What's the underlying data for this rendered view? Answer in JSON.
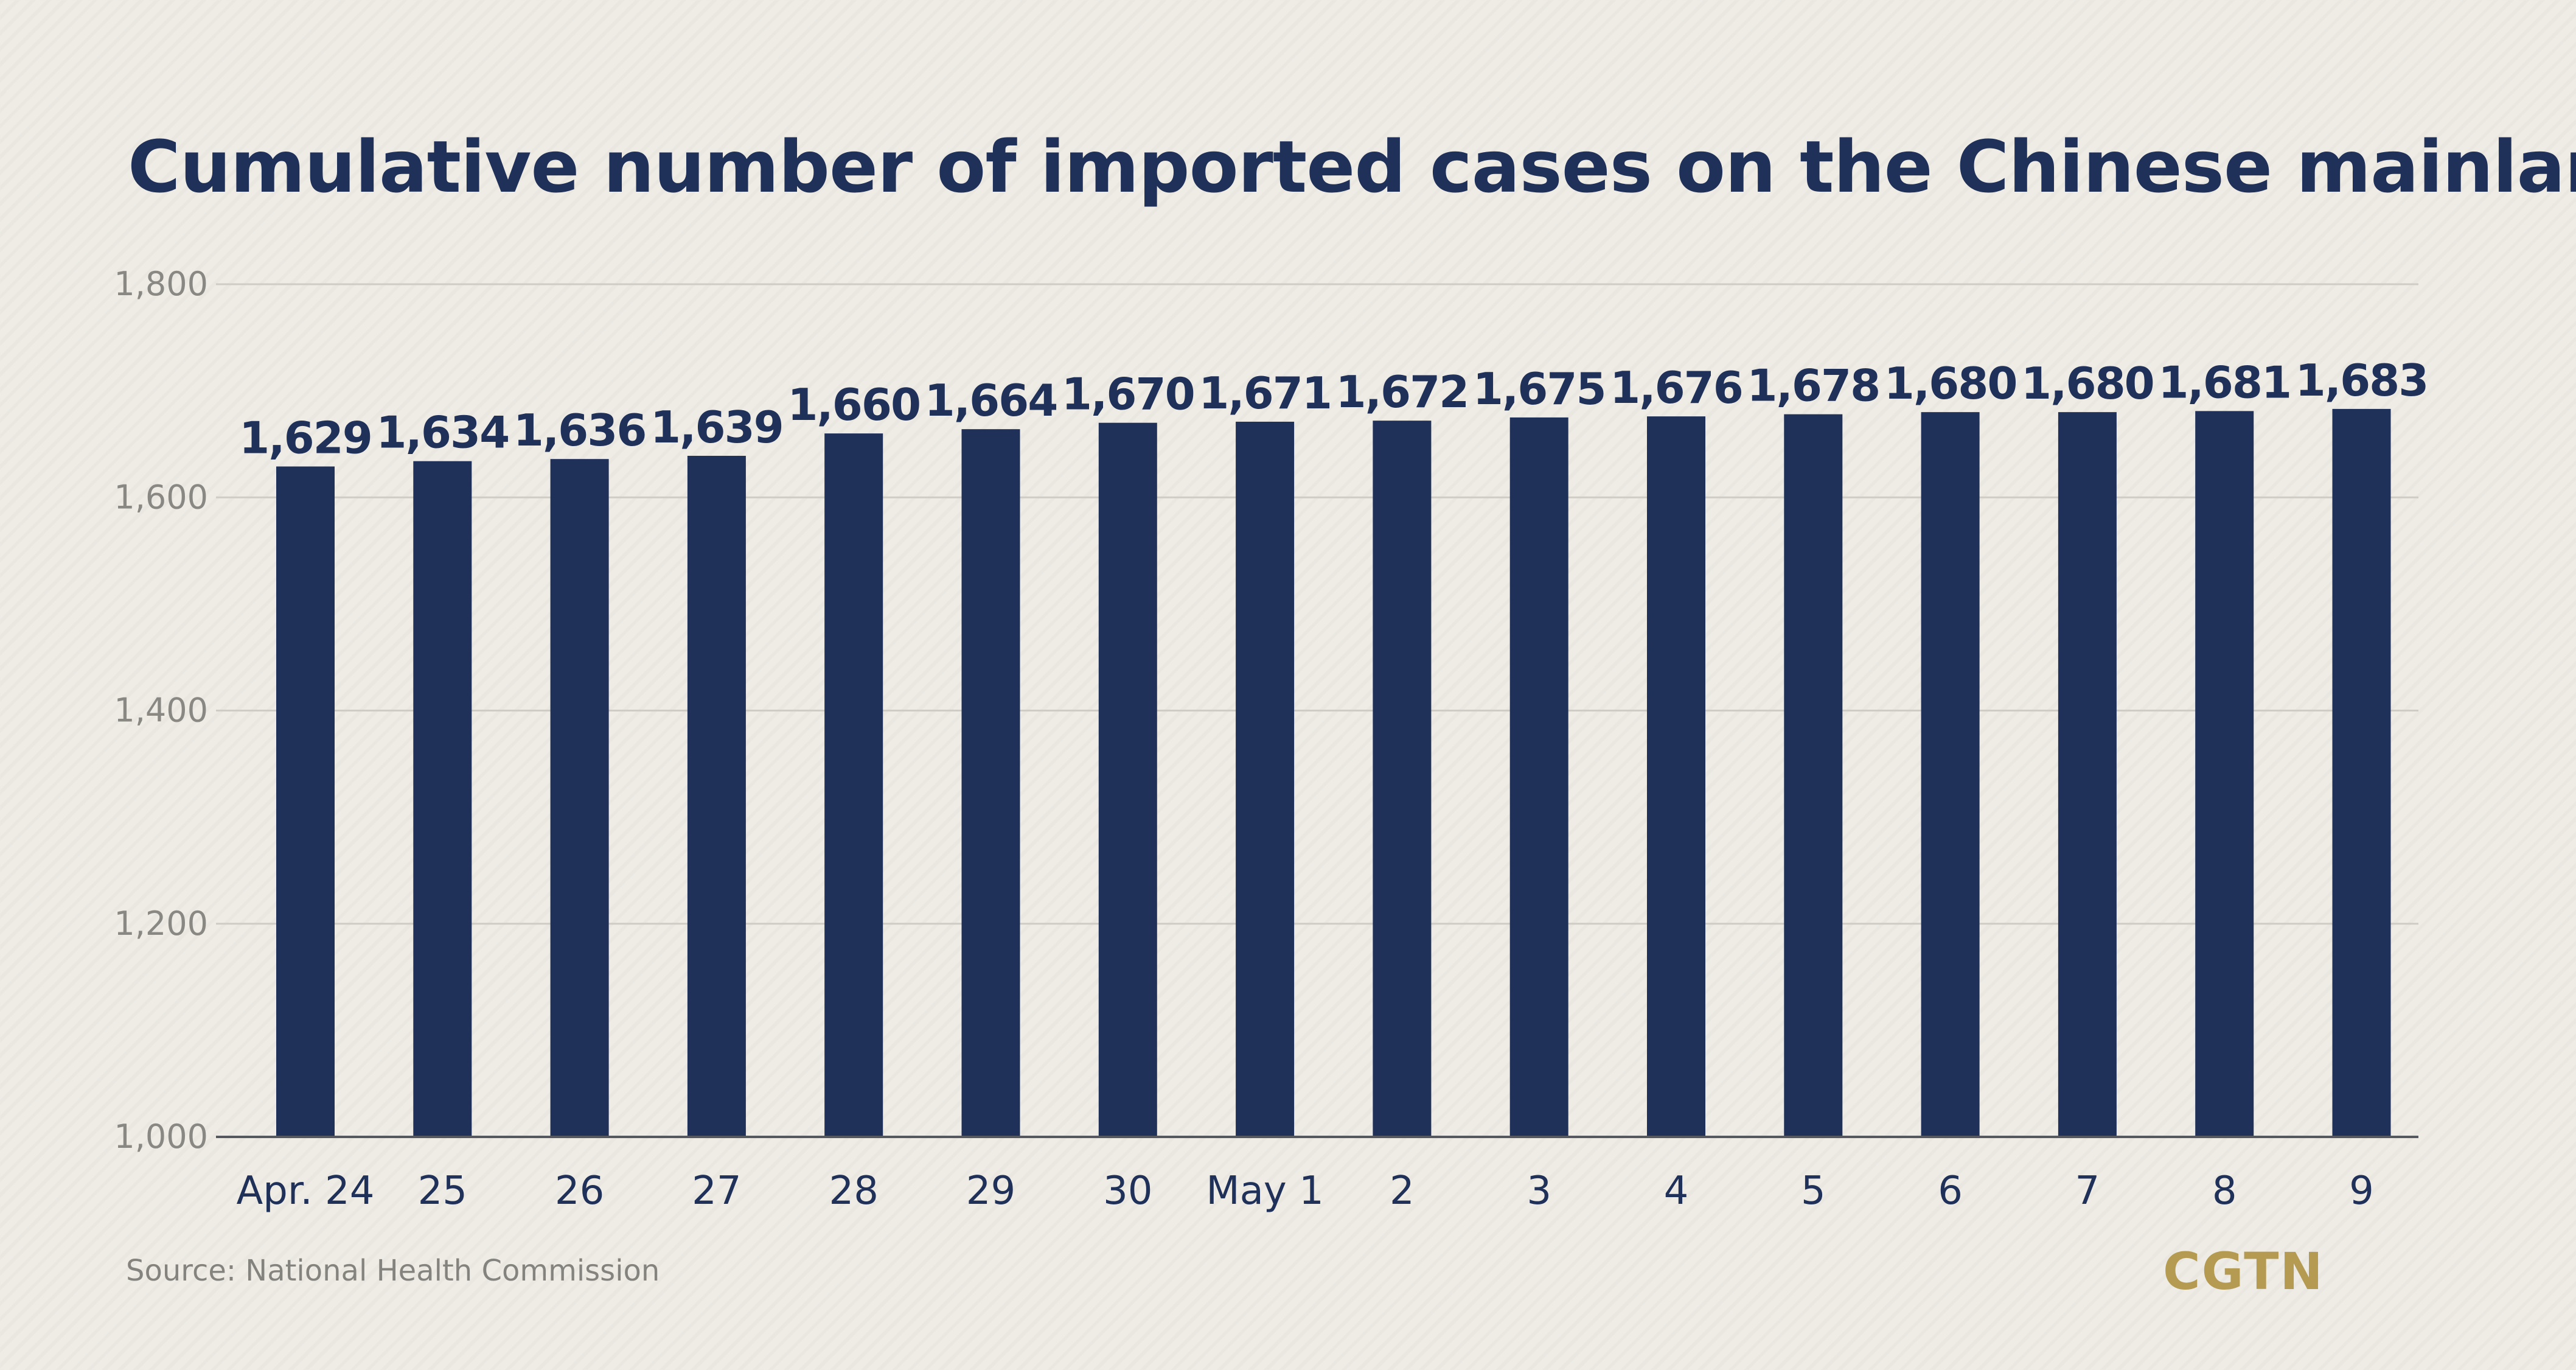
{
  "header": {
    "title": "Cumulative number of imported cases on the Chinese mainland"
  },
  "footer": {
    "source": "Source: National Health Commission",
    "logo_text": "CGTN"
  },
  "colors": {
    "bar": "#1f3059",
    "title": "#1f3059",
    "value_label": "#1f3059",
    "category_label": "#1f3059",
    "tick_label": "#8a8883",
    "grid": "#cfccc5",
    "baseline": "#55585f",
    "source": "#85837e",
    "logo": "#b59b52",
    "background": "#efece6"
  },
  "chart_data": {
    "type": "bar",
    "title": "Cumulative number of imported cases on the Chinese mainland",
    "xlabel": "",
    "ylabel": "",
    "categories": [
      "Apr. 24",
      "25",
      "26",
      "27",
      "28",
      "29",
      "30",
      "May 1",
      "2",
      "3",
      "4",
      "5",
      "6",
      "7",
      "8",
      "9"
    ],
    "values": [
      1629,
      1634,
      1636,
      1639,
      1660,
      1664,
      1670,
      1671,
      1672,
      1675,
      1676,
      1678,
      1680,
      1680,
      1681,
      1683
    ],
    "value_labels": [
      "1,629",
      "1,634",
      "1,636",
      "1,639",
      "1,660",
      "1,664",
      "1,670",
      "1,671",
      "1,672",
      "1,675",
      "1,676",
      "1,678",
      "1,680",
      "1,680",
      "1,681",
      "1,683"
    ],
    "ylim": [
      1000,
      1800
    ],
    "yticks": [
      1000,
      1200,
      1400,
      1600,
      1800
    ],
    "ytick_labels": [
      "1,000",
      "1,200",
      "1,400",
      "1,600",
      "1,800"
    ],
    "grid": true,
    "legend": "none"
  }
}
